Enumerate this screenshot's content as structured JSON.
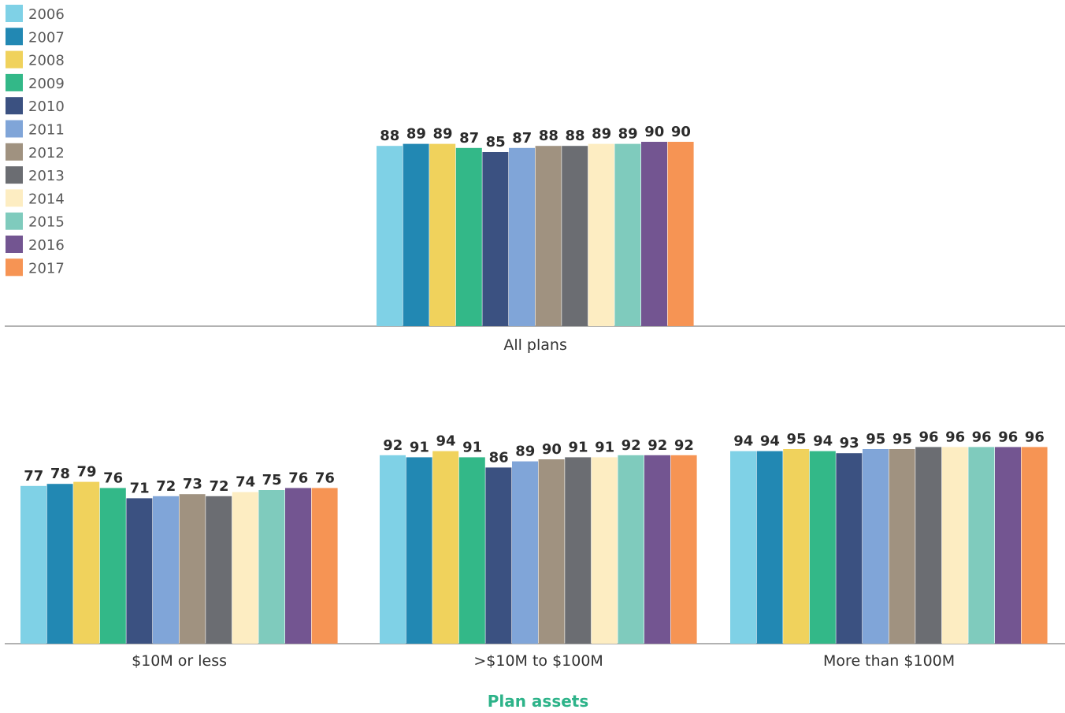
{
  "colors": {
    "2006": "#7fd1e6",
    "2007": "#2288b3",
    "2008": "#f0d25c",
    "2009": "#33b888",
    "2010": "#3b5181",
    "2011": "#80a5d8",
    "2012": "#a09280",
    "2013": "#6b6d72",
    "2014": "#fdedc2",
    "2015": "#7fcbbd",
    "2016": "#735591",
    "2017": "#f69454",
    "axis": "#999999",
    "axis_title": "#2db389"
  },
  "chart_data": [
    {
      "type": "bar",
      "categories": [
        "All plans"
      ],
      "xlabel": "",
      "ylabel": "",
      "ylim": [
        0,
        100
      ],
      "legend": "top-left",
      "grid": false,
      "series": [
        {
          "name": "2006",
          "values": [
            88
          ]
        },
        {
          "name": "2007",
          "values": [
            89
          ]
        },
        {
          "name": "2008",
          "values": [
            89
          ]
        },
        {
          "name": "2009",
          "values": [
            87
          ]
        },
        {
          "name": "2010",
          "values": [
            85
          ]
        },
        {
          "name": "2011",
          "values": [
            87
          ]
        },
        {
          "name": "2012",
          "values": [
            88
          ]
        },
        {
          "name": "2013",
          "values": [
            88
          ]
        },
        {
          "name": "2014",
          "values": [
            89
          ]
        },
        {
          "name": "2015",
          "values": [
            89
          ]
        },
        {
          "name": "2016",
          "values": [
            90
          ]
        },
        {
          "name": "2017",
          "values": [
            90
          ]
        }
      ]
    },
    {
      "type": "bar",
      "categories": [
        "$10M or less",
        ">$10M to $100M",
        "More than $100M"
      ],
      "xlabel": "Plan assets",
      "ylabel": "",
      "ylim": [
        0,
        100
      ],
      "grid": false,
      "series": [
        {
          "name": "2006",
          "values": [
            77,
            92,
            94
          ]
        },
        {
          "name": "2007",
          "values": [
            78,
            91,
            94
          ]
        },
        {
          "name": "2008",
          "values": [
            79,
            94,
            95
          ]
        },
        {
          "name": "2009",
          "values": [
            76,
            91,
            94
          ]
        },
        {
          "name": "2010",
          "values": [
            71,
            86,
            93
          ]
        },
        {
          "name": "2011",
          "values": [
            72,
            89,
            95
          ]
        },
        {
          "name": "2012",
          "values": [
            73,
            90,
            95
          ]
        },
        {
          "name": "2013",
          "values": [
            72,
            91,
            96
          ]
        },
        {
          "name": "2014",
          "values": [
            74,
            91,
            96
          ]
        },
        {
          "name": "2015",
          "values": [
            75,
            92,
            96
          ]
        },
        {
          "name": "2016",
          "values": [
            76,
            92,
            96
          ]
        },
        {
          "name": "2017",
          "values": [
            76,
            92,
            96
          ]
        }
      ]
    }
  ]
}
